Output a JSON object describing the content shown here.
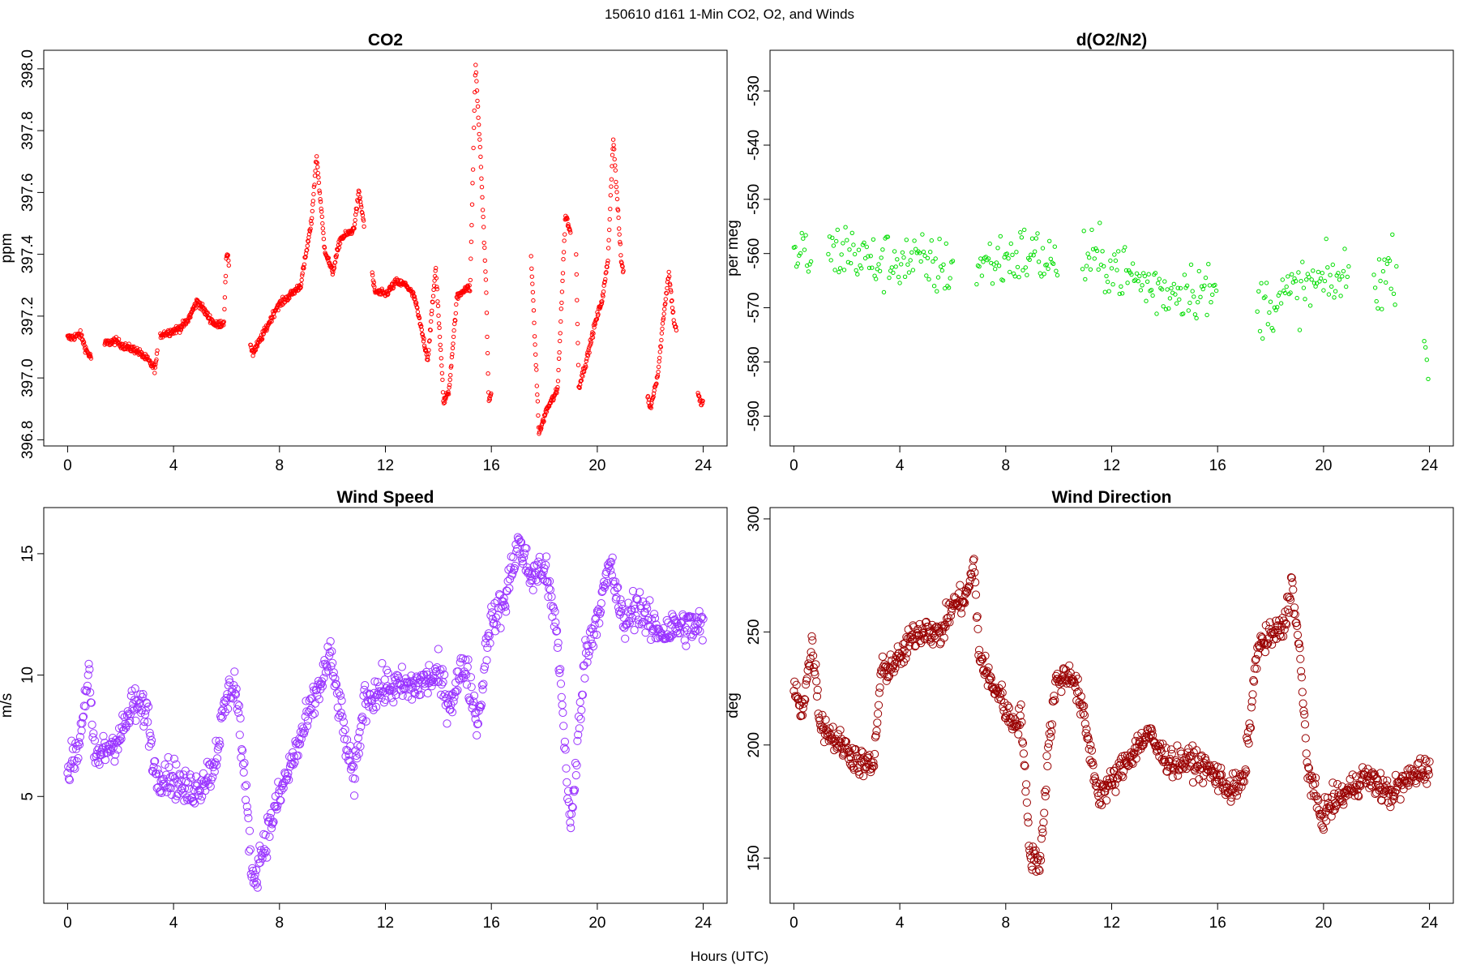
{
  "figure": {
    "suptitle": "150610   d161   1-Min CO2, O2, and Winds",
    "xlabel": "Hours (UTC)"
  },
  "chart_data": [
    {
      "id": "co2",
      "type": "scatter",
      "title": "CO2",
      "ylabel": "ppm",
      "xlabel": "",
      "xlim": [
        -0.9,
        24.9
      ],
      "ylim": [
        396.78,
        398.06
      ],
      "xticks": [
        0,
        4,
        8,
        12,
        16,
        20,
        24
      ],
      "yticks": [
        396.8,
        397.0,
        397.2,
        397.4,
        397.6,
        397.8,
        398.0
      ],
      "ytick_labels": [
        "396.8",
        "397.0",
        "397.2",
        "397.4",
        "397.6",
        "397.8",
        "398.0"
      ],
      "color": "#ff0000",
      "marker_radius_px": 2.2,
      "keypoints": [
        [
          0.1,
          397.13
        ],
        [
          0.5,
          397.14
        ],
        [
          0.7,
          397.09
        ],
        [
          1.0,
          397.05
        ],
        [
          1.4,
          397.11
        ],
        [
          1.8,
          397.12
        ],
        [
          2.2,
          397.1
        ],
        [
          2.6,
          397.09
        ],
        [
          3.0,
          397.06
        ],
        [
          3.3,
          397.03
        ],
        [
          3.5,
          397.14
        ],
        [
          3.9,
          397.15
        ],
        [
          4.2,
          397.16
        ],
        [
          4.5,
          397.18
        ],
        [
          4.9,
          397.25
        ],
        [
          5.3,
          397.2
        ],
        [
          5.6,
          397.17
        ],
        [
          5.9,
          397.18
        ],
        [
          6.0,
          397.4
        ],
        [
          7.0,
          397.08
        ],
        [
          7.5,
          397.16
        ],
        [
          7.9,
          397.23
        ],
        [
          8.3,
          397.26
        ],
        [
          8.8,
          397.3
        ],
        [
          9.2,
          397.5
        ],
        [
          9.4,
          397.72
        ],
        [
          9.7,
          397.42
        ],
        [
          10.0,
          397.34
        ],
        [
          10.3,
          397.45
        ],
        [
          10.8,
          397.48
        ],
        [
          11.0,
          397.6
        ],
        [
          11.6,
          397.28
        ],
        [
          12.0,
          397.27
        ],
        [
          12.4,
          397.31
        ],
        [
          12.8,
          397.3
        ],
        [
          13.1,
          397.26
        ],
        [
          13.3,
          397.18
        ],
        [
          13.6,
          397.06
        ],
        [
          13.9,
          397.36
        ],
        [
          14.2,
          396.92
        ],
        [
          14.4,
          396.96
        ],
        [
          14.7,
          397.26
        ],
        [
          15.0,
          397.29
        ],
        [
          15.2,
          397.29
        ],
        [
          15.4,
          398.02
        ],
        [
          15.6,
          397.7
        ],
        [
          15.8,
          397.3
        ],
        [
          15.9,
          396.92
        ],
        [
          17.5,
          397.4
        ],
        [
          17.8,
          396.82
        ],
        [
          18.1,
          396.9
        ],
        [
          18.5,
          396.96
        ],
        [
          18.8,
          397.53
        ],
        [
          19.2,
          397.4
        ],
        [
          19.3,
          396.97
        ],
        [
          19.6,
          397.06
        ],
        [
          19.9,
          397.17
        ],
        [
          20.2,
          397.26
        ],
        [
          20.4,
          397.38
        ],
        [
          20.6,
          397.78
        ],
        [
          20.9,
          397.38
        ],
        [
          22.0,
          396.9
        ],
        [
          22.3,
          397.02
        ],
        [
          22.5,
          397.2
        ],
        [
          22.7,
          397.34
        ],
        [
          22.9,
          397.18
        ],
        [
          23.9,
          396.92
        ]
      ],
      "segments": [
        [
          0.0,
          0.9
        ],
        [
          1.4,
          3.4
        ],
        [
          3.5,
          6.1
        ],
        [
          6.9,
          11.2
        ],
        [
          11.5,
          16.0
        ],
        [
          17.5,
          19.0
        ],
        [
          19.2,
          21.0
        ],
        [
          21.9,
          23.0
        ],
        [
          23.8,
          24.0
        ]
      ],
      "jitter": 0.012,
      "step_hours": 0.0167
    },
    {
      "id": "o2",
      "type": "scatter",
      "title": "d(O2/N2)",
      "ylabel": "per meg",
      "xlabel": "",
      "xlim": [
        -0.9,
        24.9
      ],
      "ylim": [
        -595.5,
        -522.5
      ],
      "xticks": [
        0,
        4,
        8,
        12,
        16,
        20,
        24
      ],
      "yticks": [
        -530,
        -540,
        -550,
        -560,
        -570,
        -580,
        -590
      ],
      "ytick_labels": [
        "-530",
        "-540",
        "-550",
        "-560",
        "-570",
        "-580",
        "-590"
      ],
      "color": "#00dd00",
      "marker_radius_px": 2.2,
      "keypoints": [
        [
          0.0,
          -560
        ],
        [
          1.0,
          -561
        ],
        [
          2.0,
          -559
        ],
        [
          3.0,
          -562
        ],
        [
          4.0,
          -561
        ],
        [
          5.0,
          -562
        ],
        [
          6.0,
          -563
        ],
        [
          7.0,
          -562
        ],
        [
          8.0,
          -561
        ],
        [
          9.0,
          -560
        ],
        [
          10.0,
          -562
        ],
        [
          11.0,
          -561
        ],
        [
          12.0,
          -562
        ],
        [
          13.0,
          -565
        ],
        [
          14.0,
          -567
        ],
        [
          15.0,
          -566
        ],
        [
          16.0,
          -568
        ],
        [
          17.5,
          -570
        ],
        [
          18.5,
          -568
        ],
        [
          19.5,
          -566
        ],
        [
          20.5,
          -565
        ],
        [
          21.0,
          -564
        ],
        [
          22.0,
          -565
        ],
        [
          22.8,
          -562
        ],
        [
          23.9,
          -578
        ]
      ],
      "segments": [
        [
          0.0,
          0.7
        ],
        [
          1.3,
          6.0
        ],
        [
          6.9,
          10.0
        ],
        [
          10.9,
          16.0
        ],
        [
          17.5,
          21.0
        ],
        [
          21.9,
          22.8
        ],
        [
          23.8,
          24.0
        ]
      ],
      "jitter": 5.5,
      "step_hours": 0.05
    },
    {
      "id": "windspeed",
      "type": "scatter",
      "title": "Wind Speed",
      "ylabel": "m/s",
      "xlabel": "",
      "xlim": [
        -0.9,
        24.9
      ],
      "ylim": [
        0.6,
        16.9
      ],
      "xticks": [
        0,
        4,
        8,
        12,
        16,
        20,
        24
      ],
      "yticks": [
        5,
        10,
        15
      ],
      "ytick_labels": [
        "5",
        "10",
        "15"
      ],
      "color": "#9933ff",
      "marker_radius_px": 4.6,
      "keypoints": [
        [
          0.0,
          6.0
        ],
        [
          0.4,
          7.0
        ],
        [
          0.8,
          10.2
        ],
        [
          1.0,
          6.5
        ],
        [
          1.5,
          7.0
        ],
        [
          2.0,
          7.5
        ],
        [
          2.5,
          8.8
        ],
        [
          3.0,
          8.5
        ],
        [
          3.3,
          6.0
        ],
        [
          4.0,
          5.8
        ],
        [
          4.5,
          5.2
        ],
        [
          5.0,
          5.5
        ],
        [
          5.5,
          6.2
        ],
        [
          6.0,
          9.0
        ],
        [
          6.3,
          9.8
        ],
        [
          6.5,
          8.0
        ],
        [
          7.0,
          1.5
        ],
        [
          7.4,
          3.0
        ],
        [
          8.0,
          5.0
        ],
        [
          8.5,
          6.5
        ],
        [
          9.0,
          8.0
        ],
        [
          9.5,
          9.5
        ],
        [
          9.9,
          10.8
        ],
        [
          10.3,
          8.5
        ],
        [
          10.8,
          5.5
        ],
        [
          11.2,
          9.0
        ],
        [
          12.0,
          9.5
        ],
        [
          13.0,
          9.5
        ],
        [
          14.0,
          10.0
        ],
        [
          14.4,
          8.8
        ],
        [
          15.0,
          10.5
        ],
        [
          15.5,
          8.0
        ],
        [
          15.9,
          12.0
        ],
        [
          16.5,
          13.0
        ],
        [
          17.0,
          15.5
        ],
        [
          17.5,
          14.0
        ],
        [
          18.0,
          14.5
        ],
        [
          18.5,
          11.5
        ],
        [
          19.0,
          3.5
        ],
        [
          19.5,
          10.5
        ],
        [
          20.0,
          12.5
        ],
        [
          20.5,
          14.5
        ],
        [
          21.0,
          12.0
        ],
        [
          21.5,
          13.0
        ],
        [
          22.0,
          12.0
        ],
        [
          22.5,
          11.8
        ],
        [
          23.0,
          12.0
        ],
        [
          23.5,
          12.0
        ],
        [
          24.0,
          12.0
        ]
      ],
      "segments": [
        [
          0.0,
          24.0
        ]
      ],
      "jitter": 0.75,
      "step_hours": 0.025
    },
    {
      "id": "winddir",
      "type": "scatter",
      "title": "Wind Direction",
      "ylabel": "deg",
      "xlabel": "",
      "xlim": [
        -0.9,
        24.9
      ],
      "ylim": [
        130,
        305
      ],
      "xticks": [
        0,
        4,
        8,
        12,
        16,
        20,
        24
      ],
      "yticks": [
        150,
        200,
        250,
        300
      ],
      "ytick_labels": [
        "150",
        "200",
        "250",
        "300"
      ],
      "color": "#990000",
      "marker_radius_px": 4.6,
      "keypoints": [
        [
          0.0,
          225
        ],
        [
          0.3,
          215
        ],
        [
          0.7,
          245
        ],
        [
          1.0,
          210
        ],
        [
          1.5,
          203
        ],
        [
          2.0,
          198
        ],
        [
          2.5,
          192
        ],
        [
          3.0,
          190
        ],
        [
          3.3,
          232
        ],
        [
          4.0,
          238
        ],
        [
          4.5,
          248
        ],
        [
          5.0,
          252
        ],
        [
          5.5,
          248
        ],
        [
          6.0,
          262
        ],
        [
          6.5,
          265
        ],
        [
          6.8,
          280
        ],
        [
          7.0,
          240
        ],
        [
          7.4,
          228
        ],
        [
          7.8,
          222
        ],
        [
          8.2,
          210
        ],
        [
          8.6,
          212
        ],
        [
          8.9,
          152
        ],
        [
          9.3,
          148
        ],
        [
          9.6,
          198
        ],
        [
          9.9,
          228
        ],
        [
          10.5,
          232
        ],
        [
          10.9,
          215
        ],
        [
          11.5,
          178
        ],
        [
          12.0,
          183
        ],
        [
          12.5,
          192
        ],
        [
          13.0,
          200
        ],
        [
          13.4,
          205
        ],
        [
          13.8,
          197
        ],
        [
          14.3,
          192
        ],
        [
          15.0,
          193
        ],
        [
          15.5,
          190
        ],
        [
          16.0,
          186
        ],
        [
          16.5,
          180
        ],
        [
          17.0,
          184
        ],
        [
          17.5,
          243
        ],
        [
          18.0,
          248
        ],
        [
          18.5,
          252
        ],
        [
          18.8,
          272
        ],
        [
          19.1,
          240
        ],
        [
          19.4,
          190
        ],
        [
          19.9,
          168
        ],
        [
          20.4,
          175
        ],
        [
          21.0,
          180
        ],
        [
          21.5,
          186
        ],
        [
          22.0,
          183
        ],
        [
          22.5,
          178
        ],
        [
          23.0,
          183
        ],
        [
          23.5,
          188
        ],
        [
          24.0,
          190
        ]
      ],
      "segments": [
        [
          0.0,
          24.0
        ]
      ],
      "jitter": 6.0,
      "step_hours": 0.025
    }
  ]
}
